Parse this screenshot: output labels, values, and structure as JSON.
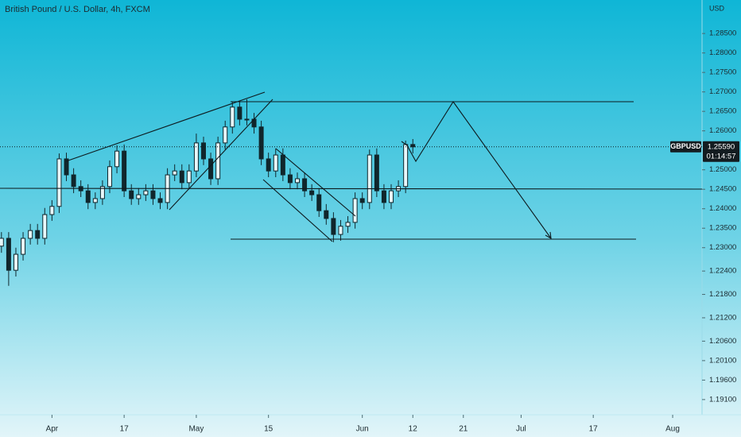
{
  "chart_data": {
    "type": "candlestick",
    "title": "British Pound / U.S. Dollar, 4h, FXCM",
    "currency": "USD",
    "symbol": "GBPUSD",
    "last_price": {
      "value": 1.2559,
      "label": "1.25590"
    },
    "countdown": "01:14:57",
    "color": "#10262c",
    "x": [
      0,
      1,
      2,
      3,
      4,
      5,
      6,
      7,
      8,
      9,
      10,
      11,
      12,
      13,
      14,
      15,
      16,
      17,
      18,
      19,
      20,
      21,
      22,
      23,
      24,
      25,
      26,
      27,
      28,
      29,
      30,
      31,
      32,
      33,
      34,
      35,
      36,
      37,
      38,
      39,
      40,
      41,
      42,
      43,
      44,
      45,
      46,
      47,
      48,
      49,
      50,
      51,
      52,
      53,
      54,
      55,
      56,
      57
    ],
    "open": [
      1.2304,
      1.2324,
      1.2242,
      1.2283,
      1.2324,
      1.2344,
      1.2324,
      1.2385,
      1.2406,
      1.2528,
      1.2487,
      1.2457,
      1.2446,
      1.2416,
      1.2426,
      1.2457,
      1.2508,
      1.2548,
      1.2446,
      1.2426,
      1.2436,
      1.2446,
      1.2426,
      1.2416,
      1.2487,
      1.2497,
      1.2467,
      1.2497,
      1.2569,
      1.2528,
      1.2477,
      1.2569,
      1.261,
      1.2661,
      1.263,
      1.263,
      1.261,
      1.2528,
      1.2497,
      1.2538,
      1.2487,
      1.2467,
      1.2477,
      1.2446,
      1.2436,
      1.2395,
      1.2375,
      1.2334,
      1.2355,
      1.2365,
      1.2426,
      1.2416,
      1.2538,
      1.2446,
      1.2416,
      1.2446,
      1.2457,
      1.2565
    ],
    "high": [
      1.234,
      1.234,
      1.23,
      1.234,
      1.2361,
      1.2361,
      1.2402,
      1.2422,
      1.2542,
      1.2544,
      1.2504,
      1.2473,
      1.2463,
      1.2442,
      1.2473,
      1.2524,
      1.2563,
      1.2565,
      1.2463,
      1.2453,
      1.2463,
      1.2463,
      1.2442,
      1.2504,
      1.2514,
      1.2514,
      1.2514,
      1.2593,
      1.2585,
      1.2544,
      1.2585,
      1.2626,
      1.2675,
      1.2677,
      1.2681,
      1.2646,
      1.2626,
      1.2544,
      1.2555,
      1.2555,
      1.2504,
      1.2493,
      1.2493,
      1.2463,
      1.2453,
      1.2412,
      1.2391,
      1.2371,
      1.2381,
      1.2442,
      1.2442,
      1.2552,
      1.2555,
      1.2463,
      1.2463,
      1.2473,
      1.2575,
      1.2579
    ],
    "low": [
      1.2287,
      1.2202,
      1.2226,
      1.2267,
      1.2308,
      1.2308,
      1.2308,
      1.2369,
      1.2389,
      1.2471,
      1.244,
      1.243,
      1.2399,
      1.2399,
      1.241,
      1.244,
      1.2491,
      1.243,
      1.241,
      1.241,
      1.242,
      1.241,
      1.2399,
      1.2399,
      1.2471,
      1.245,
      1.245,
      1.2481,
      1.2512,
      1.2461,
      1.2461,
      1.2552,
      1.2593,
      1.2614,
      1.2614,
      1.2593,
      1.2512,
      1.2481,
      1.2481,
      1.2471,
      1.245,
      1.245,
      1.243,
      1.242,
      1.2379,
      1.2359,
      1.2314,
      1.2318,
      1.2338,
      1.2349,
      1.2399,
      1.2399,
      1.243,
      1.2399,
      1.2399,
      1.243,
      1.244,
      1.2542
    ],
    "close": [
      1.2324,
      1.2242,
      1.2283,
      1.2324,
      1.2344,
      1.2324,
      1.2385,
      1.2406,
      1.2528,
      1.2487,
      1.2457,
      1.2446,
      1.2416,
      1.2426,
      1.2457,
      1.2508,
      1.2548,
      1.2446,
      1.2426,
      1.2436,
      1.2446,
      1.2426,
      1.2416,
      1.2487,
      1.2497,
      1.2467,
      1.2497,
      1.2569,
      1.2528,
      1.2477,
      1.2569,
      1.261,
      1.2661,
      1.263,
      1.263,
      1.261,
      1.2528,
      1.2497,
      1.2538,
      1.2487,
      1.2467,
      1.2477,
      1.2446,
      1.2436,
      1.2395,
      1.2375,
      1.2334,
      1.2355,
      1.2365,
      1.2426,
      1.2416,
      1.2538,
      1.2446,
      1.2416,
      1.2446,
      1.2457,
      1.2565,
      1.2559
    ],
    "xlim": [
      -0.2,
      96.3
    ],
    "xticks": [
      {
        "value": 7,
        "label": "Apr"
      },
      17,
      {
        "value": 27,
        "label": "May"
      },
      {
        "value": 37,
        "label": "15"
      },
      {
        "value": 50,
        "label": "Jun"
      },
      {
        "value": 57,
        "label": "12"
      },
      {
        "value": 64,
        "label": "21"
      },
      {
        "value": 72,
        "label": "Jul"
      },
      {
        "value": 82,
        "label": "17"
      },
      {
        "value": 93,
        "label": "Aug"
      }
    ],
    "ylim": [
      1.1871,
      1.2936
    ],
    "yticks": [
      {
        "value": 1.285,
        "label": "1.28500"
      },
      {
        "value": 1.28,
        "label": "1.28000"
      },
      {
        "value": 1.275,
        "label": "1.27500"
      },
      {
        "value": 1.27,
        "label": "1.27000"
      },
      {
        "value": 1.265,
        "label": "1.26500"
      },
      {
        "value": 1.26,
        "label": "1.26000"
      },
      {
        "value": 1.25,
        "label": "1.25000"
      },
      {
        "value": 1.245,
        "label": "1.24500"
      },
      {
        "value": 1.24,
        "label": "1.24000"
      },
      {
        "value": 1.235,
        "label": "1.23500"
      },
      {
        "value": 1.23,
        "label": "1.23000"
      },
      {
        "value": 1.224,
        "label": "1.22400"
      },
      {
        "value": 1.218,
        "label": "1.21800"
      },
      {
        "value": 1.212,
        "label": "1.21200"
      },
      {
        "value": 1.206,
        "label": "1.20600"
      },
      {
        "value": 1.201,
        "label": "1.20100"
      },
      {
        "value": 1.196,
        "label": "1.19600"
      },
      {
        "value": 1.191,
        "label": "1.19100"
      }
    ],
    "grid": false
  }
}
